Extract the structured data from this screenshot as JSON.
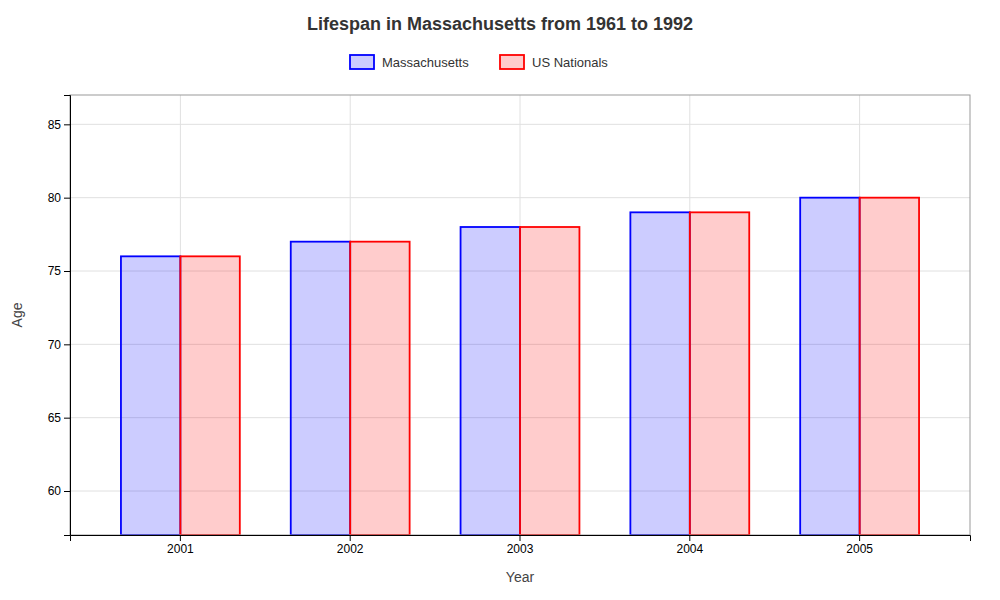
{
  "chart_data": {
    "type": "bar",
    "title": "Lifespan in Massachusetts from 1961 to 1992",
    "x_label": "Year",
    "y_label": "Age",
    "categories": [
      "2001",
      "2002",
      "2003",
      "2004",
      "2005"
    ],
    "series": [
      {
        "name": "Massachusetts",
        "color": "#0000ff",
        "values": [
          76,
          77,
          78,
          79,
          80
        ]
      },
      {
        "name": "US Nationals",
        "color": "#ff0000",
        "values": [
          76,
          77,
          78,
          79,
          80
        ]
      }
    ],
    "ylim": [
      57,
      87
    ],
    "yticks": [
      60,
      65,
      70,
      75,
      80,
      85
    ],
    "grid": true,
    "legend": "top"
  }
}
